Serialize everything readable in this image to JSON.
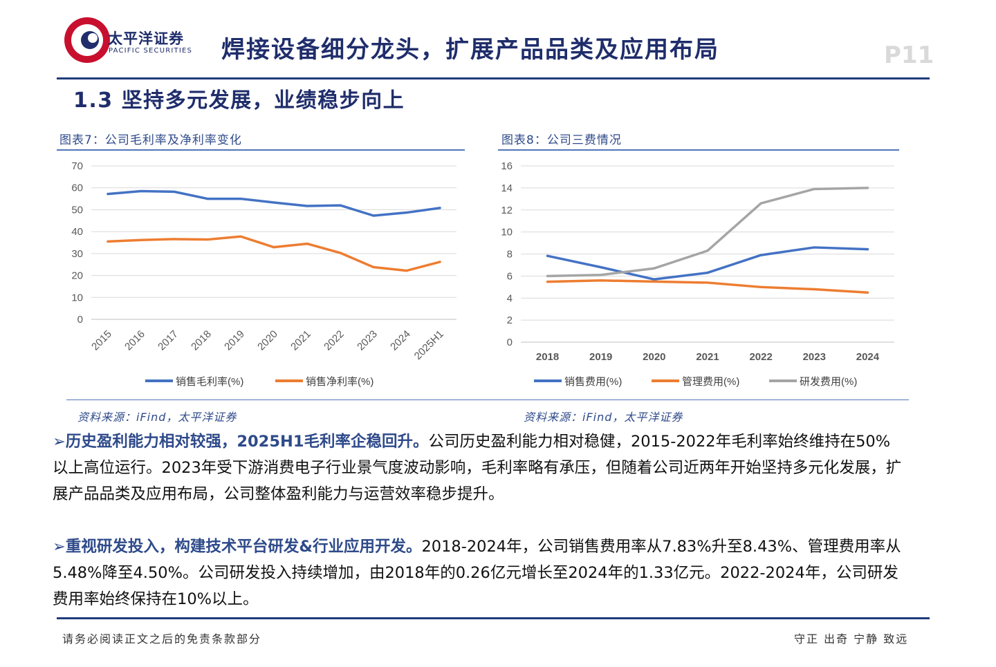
{
  "header": {
    "brand_cn": "太平洋证券",
    "brand_en": "PACIFIC SECURITIES",
    "title": "焊接设备细分龙头，扩展产品品类及应用布局",
    "page_no": "P11",
    "brand_color": "#1f2d6b",
    "logo_color": "#c8102e"
  },
  "section": {
    "title": "1.3 坚持多元发展，业绩稳步向上"
  },
  "figures": [
    {
      "title": "图表7：公司毛利率及净利率变化",
      "source": "资料来源：iFind，太平洋证券"
    },
    {
      "title": "图表8：公司三费情况",
      "source": "资料来源：iFind，太平洋证券"
    }
  ],
  "chart_data": [
    {
      "type": "line",
      "categories": [
        "2015",
        "2016",
        "2017",
        "2018",
        "2019",
        "2020",
        "2021",
        "2022",
        "2023",
        "2024",
        "2025H1"
      ],
      "series": [
        {
          "name": "销售毛利率(%)",
          "color": "#4472c4",
          "values": [
            57.2,
            58.5,
            58.2,
            55.0,
            55.0,
            53.3,
            51.7,
            52.0,
            47.3,
            48.7,
            50.8
          ]
        },
        {
          "name": "销售净利率(%)",
          "color": "#ed7d31",
          "values": [
            35.5,
            36.2,
            36.6,
            36.4,
            37.8,
            32.9,
            34.5,
            30.3,
            23.8,
            22.2,
            26.2
          ]
        }
      ],
      "yticks": [
        "0",
        "10",
        "20",
        "30",
        "40",
        "50",
        "60",
        "70"
      ],
      "ylim": [
        0,
        70
      ],
      "grid": true,
      "legend": "bottom"
    },
    {
      "type": "line",
      "categories": [
        "2018",
        "2019",
        "2020",
        "2021",
        "2022",
        "2023",
        "2024"
      ],
      "series": [
        {
          "name": "销售费用(%)",
          "color": "#4472c4",
          "values": [
            7.83,
            6.8,
            5.7,
            6.3,
            7.9,
            8.6,
            8.43
          ]
        },
        {
          "name": "管理费用(%)",
          "color": "#ed7d31",
          "values": [
            5.48,
            5.6,
            5.5,
            5.4,
            5.0,
            4.8,
            4.5
          ]
        },
        {
          "name": "研发费用(%)",
          "color": "#a5a5a5",
          "values": [
            6.0,
            6.1,
            6.7,
            8.3,
            12.6,
            13.9,
            14.0
          ]
        }
      ],
      "yticks": [
        "0",
        "2",
        "4",
        "6",
        "8",
        "10",
        "12",
        "14",
        "16"
      ],
      "ylim": [
        0,
        16
      ],
      "grid": true,
      "legend": "bottom"
    }
  ],
  "bullets": [
    {
      "mark": "➢",
      "lead": "历史盈利能力相对较强，2025H1毛利率企稳回升。",
      "body": "公司历史盈利能力相对稳健，2015-2022年毛利率始终维持在50%以上高位运行。2023年受下游消费电子行业景气度波动影响，毛利率略有承压，但随着公司近两年开始坚持多元化发展，扩展产品品类及应用布局，公司整体盈利能力与运营效率稳步提升。"
    },
    {
      "mark": "➢",
      "lead": "重视研发投入，构建技术平台研发&行业应用开发。",
      "body": "2018-2024年，公司销售费用率从7.83%升至8.43%、管理费用率从5.48%降至4.50%。公司研发投入持续增加，由2018年的0.26亿元增长至2024年的1.33亿元。2022-2024年，公司研发费用率始终保持在10%以上。"
    }
  ],
  "footer": {
    "left": "请务必阅读正文之后的免责条款部分",
    "right": "守正 出奇 宁静 致远"
  }
}
